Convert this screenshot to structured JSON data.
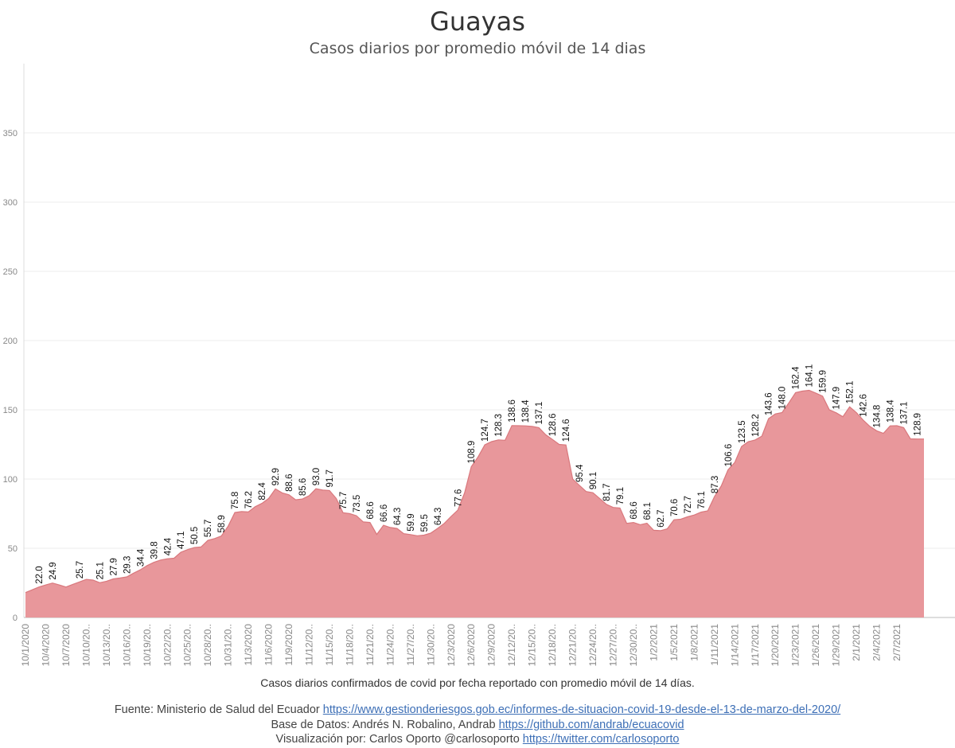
{
  "title": "Guayas",
  "subtitle": "Casos diarios por promedio móvil de 14 dias",
  "caption": "Casos diarios confirmados de covid por fecha reportado con promedio móvil de 14 días.",
  "footer": {
    "source_label": "Fuente: Ministerio de Salud del Ecuador",
    "source_link": "https://www.gestionderiesgos.gob.ec/informes-de-situacion-covid-19-desde-el-13-de-marzo-del-2020/",
    "db_label": "Base de Datos: Andrés N. Robalino, Andrab",
    "db_link": "https://github.com/andrab/ecuacovid",
    "viz_label": "Visualización por: Carlos Oporto @carlosoporto",
    "viz_link": "https://twitter.com/carlosoporto"
  },
  "colors": {
    "area": "#e8979b",
    "line": "#d9787d",
    "grid": "#ececec",
    "axis_text": "#888888",
    "label_text": "#111111"
  },
  "chart_data": {
    "type": "area",
    "xlabel": "",
    "ylabel": "",
    "ylim": [
      0,
      400
    ],
    "yticks": [
      0,
      50,
      100,
      150,
      200,
      250,
      300,
      350
    ],
    "grid": true,
    "x_tick_labels": [
      "10/1/2020",
      "10/4/2020",
      "10/7/2020",
      "10/10/20..",
      "10/13/20..",
      "10/16/20..",
      "10/19/20..",
      "10/22/20..",
      "10/25/20..",
      "10/28/20..",
      "10/31/20..",
      "11/3/2020",
      "11/6/2020",
      "11/9/2020",
      "11/12/20..",
      "11/15/20..",
      "11/18/20..",
      "11/21/20..",
      "11/24/20..",
      "11/27/20..",
      "11/30/20..",
      "12/3/2020",
      "12/6/2020",
      "12/9/2020",
      "12/12/20..",
      "12/15/20..",
      "12/18/20..",
      "12/21/20..",
      "12/24/20..",
      "12/27/20..",
      "12/30/20..",
      "1/2/2021",
      "1/5/2021",
      "1/8/2021",
      "1/11/2021",
      "1/14/2021",
      "1/17/2021",
      "1/20/2021",
      "1/23/2021",
      "1/26/2021",
      "1/29/2021",
      "2/1/2021",
      "2/4/2021",
      "2/7/2021"
    ],
    "x_axis_end_index": 131,
    "values": [
      18.0,
      20.0,
      22.0,
      23.5,
      24.9,
      23.5,
      22.0,
      23.9,
      25.7,
      27.5,
      27.0,
      25.1,
      26.2,
      27.9,
      28.5,
      29.3,
      32.0,
      34.4,
      37.5,
      39.8,
      41.5,
      42.4,
      42.8,
      47.1,
      49.0,
      50.5,
      51.0,
      55.7,
      57.0,
      58.9,
      66.0,
      75.8,
      76.5,
      76.2,
      80.0,
      82.4,
      86.0,
      92.9,
      90.0,
      88.6,
      85.0,
      85.6,
      88.0,
      93.0,
      92.0,
      91.7,
      86.0,
      75.7,
      75.0,
      73.5,
      69.0,
      68.6,
      60.0,
      66.6,
      65.0,
      64.3,
      60.5,
      59.9,
      59.0,
      59.5,
      61.0,
      64.3,
      68.0,
      73.0,
      77.6,
      90.0,
      108.9,
      116.0,
      124.7,
      127.0,
      128.3,
      128.0,
      138.6,
      138.5,
      138.4,
      138.0,
      137.1,
      132.0,
      128.6,
      125.0,
      124.6,
      100.0,
      95.4,
      91.0,
      90.1,
      86.0,
      81.7,
      79.5,
      79.1,
      68.0,
      68.6,
      67.0,
      68.1,
      63.0,
      62.7,
      64.0,
      70.6,
      71.0,
      72.7,
      74.0,
      76.1,
      77.0,
      87.3,
      95.0,
      106.6,
      112.0,
      123.5,
      127.0,
      128.2,
      131.0,
      143.6,
      147.0,
      148.0,
      155.0,
      162.4,
      163.5,
      164.1,
      162.0,
      159.9,
      150.0,
      147.9,
      145.0,
      152.1,
      148.0,
      142.6,
      138.0,
      134.8,
      133.0,
      138.4,
      138.5,
      137.1,
      129.0,
      128.9,
      128.9
    ],
    "data_labels": [
      {
        "i": 2,
        "text": "22.0"
      },
      {
        "i": 4,
        "text": "24.9"
      },
      {
        "i": 8,
        "text": "25.7"
      },
      {
        "i": 11,
        "text": "25.1"
      },
      {
        "i": 13,
        "text": "27.9"
      },
      {
        "i": 15,
        "text": "29.3"
      },
      {
        "i": 17,
        "text": "34.4"
      },
      {
        "i": 19,
        "text": "39.8"
      },
      {
        "i": 21,
        "text": "42.4"
      },
      {
        "i": 23,
        "text": "47.1"
      },
      {
        "i": 25,
        "text": "50.5"
      },
      {
        "i": 27,
        "text": "55.7"
      },
      {
        "i": 29,
        "text": "58.9"
      },
      {
        "i": 31,
        "text": "75.8"
      },
      {
        "i": 33,
        "text": "76.2"
      },
      {
        "i": 35,
        "text": "82.4"
      },
      {
        "i": 37,
        "text": "92.9"
      },
      {
        "i": 39,
        "text": "88.6"
      },
      {
        "i": 41,
        "text": "85.6"
      },
      {
        "i": 43,
        "text": "93.0"
      },
      {
        "i": 45,
        "text": "91.7"
      },
      {
        "i": 47,
        "text": "75.7"
      },
      {
        "i": 49,
        "text": "73.5"
      },
      {
        "i": 51,
        "text": "68.6"
      },
      {
        "i": 53,
        "text": "66.6"
      },
      {
        "i": 55,
        "text": "64.3"
      },
      {
        "i": 57,
        "text": "59.9"
      },
      {
        "i": 59,
        "text": "59.5"
      },
      {
        "i": 61,
        "text": "64.3"
      },
      {
        "i": 64,
        "text": "77.6"
      },
      {
        "i": 66,
        "text": "108.9"
      },
      {
        "i": 68,
        "text": "124.7"
      },
      {
        "i": 70,
        "text": "128.3"
      },
      {
        "i": 72,
        "text": "138.6"
      },
      {
        "i": 74,
        "text": "138.4"
      },
      {
        "i": 76,
        "text": "137.1"
      },
      {
        "i": 78,
        "text": "128.6"
      },
      {
        "i": 80,
        "text": "124.6"
      },
      {
        "i": 82,
        "text": "95.4"
      },
      {
        "i": 84,
        "text": "90.1"
      },
      {
        "i": 86,
        "text": "81.7"
      },
      {
        "i": 88,
        "text": "79.1"
      },
      {
        "i": 90,
        "text": "68.6"
      },
      {
        "i": 92,
        "text": "68.1"
      },
      {
        "i": 94,
        "text": "62.7"
      },
      {
        "i": 96,
        "text": "70.6"
      },
      {
        "i": 98,
        "text": "72.7"
      },
      {
        "i": 100,
        "text": "76.1"
      },
      {
        "i": 102,
        "text": "87.3"
      },
      {
        "i": 104,
        "text": "106.6"
      },
      {
        "i": 106,
        "text": "123.5"
      },
      {
        "i": 108,
        "text": "128.2"
      },
      {
        "i": 110,
        "text": "143.6"
      },
      {
        "i": 112,
        "text": "148.0"
      },
      {
        "i": 114,
        "text": "162.4"
      },
      {
        "i": 116,
        "text": "164.1"
      },
      {
        "i": 118,
        "text": "159.9"
      },
      {
        "i": 120,
        "text": "147.9"
      },
      {
        "i": 122,
        "text": "152.1"
      },
      {
        "i": 124,
        "text": "142.6"
      },
      {
        "i": 126,
        "text": "134.8"
      },
      {
        "i": 128,
        "text": "138.4"
      },
      {
        "i": 130,
        "text": "137.1"
      },
      {
        "i": 132,
        "text": "128.9"
      }
    ]
  }
}
